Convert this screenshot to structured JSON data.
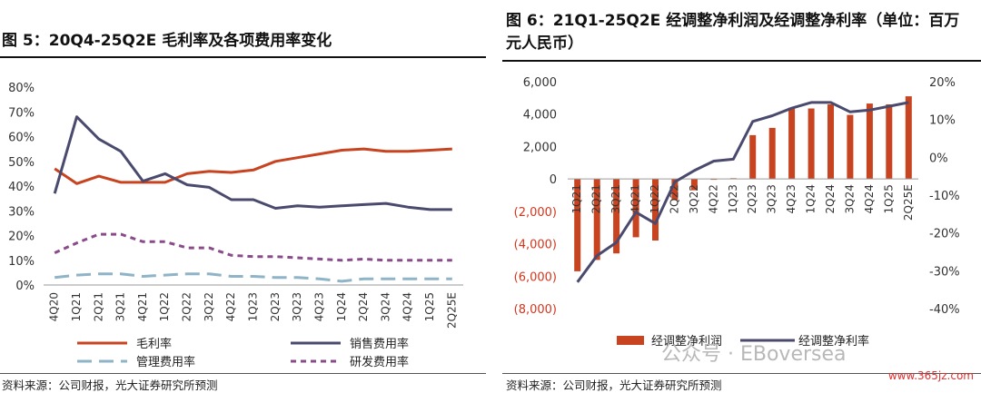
{
  "left": {
    "title": "图 5：20Q4-25Q2E 毛利率及各项费用率变化",
    "source": "资料来源：公司财报，光大证券研究所预测"
  },
  "right": {
    "title_line1": "图 6：21Q1-25Q2E 经调整净利润及经调整净利率（单位：百万",
    "title_line2": "元人民币）",
    "source": "资料来源：公司财报，光大证券研究所预测"
  },
  "watermark": "公众号 · EBoversea",
  "url": "www.365jz.com",
  "chart_data": [
    {
      "type": "line",
      "title": "20Q4-25Q2E 毛利率及各项费用率变化",
      "categories": [
        "4Q20",
        "1Q21",
        "2Q21",
        "3Q21",
        "4Q21",
        "1Q22",
        "2Q22",
        "3Q22",
        "4Q22",
        "1Q23",
        "2Q23",
        "3Q23",
        "4Q23",
        "1Q24",
        "2Q24",
        "3Q24",
        "4Q24",
        "1Q25",
        "2Q25E"
      ],
      "y_ticks": [
        "0%",
        "10%",
        "20%",
        "30%",
        "40%",
        "50%",
        "60%",
        "70%",
        "80%"
      ],
      "ylim": [
        0,
        80
      ],
      "legend_position": "bottom",
      "series": [
        {
          "name": "毛利率",
          "color": "#c8431f",
          "dash": "solid",
          "values": [
            47,
            41,
            44,
            41.5,
            41.5,
            41.5,
            45,
            46,
            45.5,
            46.5,
            50,
            51.5,
            53,
            54.5,
            55,
            54,
            54,
            54.5,
            55
          ]
        },
        {
          "name": "销售费用率",
          "color": "#4a4a6e",
          "dash": "solid",
          "values": [
            37,
            68,
            59,
            54,
            42,
            45,
            40.5,
            39.5,
            34.5,
            34.5,
            31,
            32,
            31.5,
            32,
            32.5,
            33,
            31.5,
            30.5,
            30.5
          ]
        },
        {
          "name": "管理费用率",
          "color": "#8fb3c7",
          "dash": "long",
          "values": [
            3,
            4,
            4.5,
            4.5,
            3.5,
            4,
            4.5,
            4.5,
            3.5,
            3.5,
            3,
            3,
            2.5,
            1.5,
            2.5,
            2.5,
            2.5,
            2.5,
            2.5
          ]
        },
        {
          "name": "研发费用率",
          "color": "#8a4b8a",
          "dash": "short",
          "values": [
            13,
            17,
            20.5,
            20.5,
            17.5,
            17.5,
            15,
            15,
            12,
            11.5,
            11.5,
            11,
            10.5,
            10,
            10.5,
            10,
            10,
            10,
            10
          ]
        }
      ]
    },
    {
      "type": "bar+line",
      "title": "21Q1-25Q2E 经调整净利润及经调整净利率（单位：百万元人民币）",
      "categories": [
        "1Q21",
        "2Q21",
        "3Q21",
        "4Q21",
        "1Q22",
        "2Q22",
        "3Q22",
        "4Q22",
        "1Q23",
        "2Q23",
        "3Q23",
        "4Q23",
        "1Q24",
        "2Q24",
        "3Q24",
        "4Q24",
        "1Q25",
        "2Q25E"
      ],
      "left_axis": {
        "ylim": [
          -8000,
          6000
        ],
        "ticks": [
          "(8,000)",
          "(6,000)",
          "(4,000)",
          "(2,000)",
          "0",
          "2,000",
          "4,000",
          "6,000"
        ]
      },
      "right_axis": {
        "ylim": [
          -40,
          20
        ],
        "ticks": [
          "-40%",
          "-30%",
          "-20%",
          "-10%",
          "0%",
          "10%",
          "20%"
        ]
      },
      "legend_position": "bottom",
      "series": [
        {
          "name": "经调整净利润",
          "type": "bar",
          "axis": "left",
          "color": "#c8431f",
          "values": [
            -5700,
            -5000,
            -4600,
            -3600,
            -3800,
            -1300,
            -700,
            -50,
            50,
            2700,
            3150,
            4400,
            4350,
            4600,
            3950,
            4650,
            4600,
            5100
          ]
        },
        {
          "name": "经调整净利率",
          "type": "line",
          "axis": "right",
          "color": "#4a4a6e",
          "values": [
            -33,
            -26,
            -22.5,
            -14.5,
            -17.5,
            -6.5,
            -3.5,
            -1,
            -0.5,
            9.5,
            11,
            13,
            14.5,
            14.5,
            12,
            12.5,
            13.5,
            14.5
          ]
        }
      ]
    }
  ]
}
